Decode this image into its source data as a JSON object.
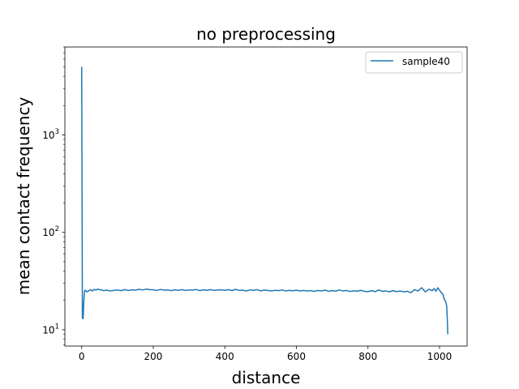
{
  "chart_data": {
    "type": "line",
    "title": "no preprocessing",
    "xlabel": "distance",
    "ylabel": "mean contact frequency",
    "yscale": "log",
    "xlim": [
      -47,
      1077
    ],
    "ylim": [
      6.8,
      8000
    ],
    "xticks": [
      0,
      200,
      400,
      600,
      800,
      1000
    ],
    "yticks": [
      {
        "base": "10",
        "exp": "1",
        "value": 10
      },
      {
        "base": "10",
        "exp": "2",
        "value": 100
      },
      {
        "base": "10",
        "exp": "3",
        "value": 1000
      }
    ],
    "grid": false,
    "legend_position": "top-right",
    "series": [
      {
        "name": "sample40",
        "color": "#1f77b4",
        "x": [
          0,
          2,
          4,
          6,
          8,
          10,
          12,
          15,
          20,
          25,
          30,
          35,
          40,
          45,
          50,
          55,
          60,
          70,
          80,
          90,
          100,
          110,
          120,
          130,
          140,
          150,
          160,
          170,
          180,
          190,
          200,
          210,
          220,
          230,
          240,
          250,
          260,
          270,
          280,
          290,
          300,
          310,
          320,
          330,
          340,
          350,
          360,
          370,
          380,
          390,
          400,
          410,
          420,
          430,
          440,
          450,
          460,
          470,
          480,
          490,
          500,
          510,
          520,
          530,
          540,
          550,
          560,
          570,
          580,
          590,
          600,
          610,
          620,
          630,
          640,
          650,
          660,
          670,
          680,
          690,
          700,
          710,
          720,
          730,
          740,
          750,
          760,
          770,
          780,
          790,
          800,
          810,
          820,
          830,
          840,
          850,
          860,
          870,
          880,
          890,
          900,
          910,
          920,
          930,
          940,
          950,
          960,
          970,
          980,
          985,
          990,
          995,
          1000,
          1005,
          1010,
          1012,
          1015,
          1018,
          1020,
          1022,
          1023
        ],
        "y": [
          5000,
          13.2,
          13.0,
          20.0,
          25.0,
          25.5,
          25.0,
          24.5,
          25.2,
          25.8,
          25.0,
          26.0,
          25.5,
          26.2,
          25.6,
          25.8,
          25.2,
          25.5,
          25.0,
          25.4,
          25.6,
          25.2,
          25.8,
          25.3,
          25.7,
          25.5,
          26.0,
          25.6,
          26.1,
          25.8,
          25.7,
          25.3,
          25.9,
          25.5,
          25.6,
          25.2,
          25.7,
          25.4,
          25.8,
          25.3,
          25.6,
          25.5,
          25.9,
          25.2,
          25.7,
          25.4,
          25.8,
          25.3,
          25.6,
          25.7,
          25.4,
          25.8,
          25.2,
          26.0,
          25.3,
          25.5,
          25.0,
          25.6,
          25.4,
          25.8,
          25.1,
          25.5,
          25.3,
          25.0,
          25.4,
          25.2,
          25.6,
          25.0,
          25.4,
          25.1,
          25.5,
          25.0,
          25.3,
          25.0,
          25.2,
          24.8,
          25.3,
          25.0,
          25.5,
          24.8,
          25.2,
          24.9,
          25.6,
          25.0,
          25.3,
          24.7,
          25.1,
          24.9,
          25.4,
          24.8,
          24.6,
          25.2,
          24.6,
          25.6,
          24.8,
          25.0,
          24.5,
          25.2,
          24.6,
          25.0,
          24.5,
          24.8,
          24.0,
          25.8,
          25.0,
          27.0,
          24.5,
          26.0,
          25.2,
          26.5,
          24.8,
          27.0,
          25.5,
          24.0,
          23.0,
          21.0,
          20.0,
          19.0,
          17.5,
          12.0,
          9.0
        ]
      }
    ]
  }
}
